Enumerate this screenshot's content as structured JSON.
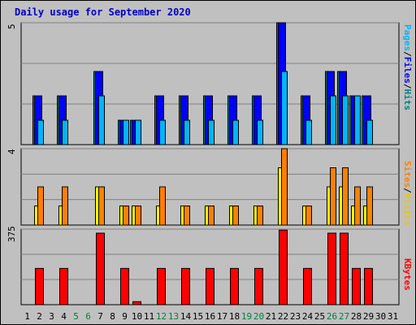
{
  "title": "Daily usage for September 2020",
  "panels": {
    "top": {
      "max_label": "5",
      "legend": [
        {
          "text": "Pages",
          "color": "#00b4ff"
        },
        {
          "text": "/",
          "color": "#000000"
        },
        {
          "text": "Files",
          "color": "#0000ff"
        },
        {
          "text": "/",
          "color": "#000000"
        },
        {
          "text": "Hits",
          "color": "#008080"
        }
      ]
    },
    "middle": {
      "max_label": "4",
      "legend": [
        {
          "text": "Sites",
          "color": "#ff8000"
        },
        {
          "text": "/",
          "color": "#000000"
        },
        {
          "text": "Visits",
          "color": "#e8c800"
        }
      ]
    },
    "bottom": {
      "max_label": "375",
      "legend": [
        {
          "text": "KBytes",
          "color": "#ff0000"
        }
      ]
    }
  },
  "colors": {
    "hits": "#008080",
    "files": "#0000ff",
    "pages": "#00b4ff",
    "visits": "#ffff00",
    "sites": "#ff8000",
    "kbytes": "#ff0000",
    "day_default": "#000000",
    "day_weekend": "#008040"
  },
  "chart_data": {
    "type": "bar",
    "title": "Daily usage for September 2020",
    "categories": [
      "1",
      "2",
      "3",
      "4",
      "5",
      "6",
      "7",
      "8",
      "9",
      "10",
      "11",
      "12",
      "13",
      "14",
      "15",
      "16",
      "17",
      "18",
      "19",
      "20",
      "21",
      "22",
      "23",
      "24",
      "25",
      "26",
      "27",
      "28",
      "29",
      "30",
      "31"
    ],
    "weekend_days": [
      "5",
      "6",
      "12",
      "13",
      "19",
      "20",
      "26",
      "27"
    ],
    "panels": [
      {
        "name": "Hits/Files/Pages",
        "ylim": [
          0,
          5
        ],
        "series": [
          {
            "name": "Hits",
            "values": [
              0,
              2,
              0,
              2,
              0,
              0,
              3,
              0,
              1,
              1,
              0,
              2,
              0,
              2,
              0,
              2,
              0,
              2,
              0,
              2,
              0,
              5,
              0,
              2,
              0,
              3,
              3,
              2,
              2,
              0,
              0
            ]
          },
          {
            "name": "Files",
            "values": [
              0,
              2,
              0,
              2,
              0,
              0,
              3,
              0,
              1,
              1,
              0,
              2,
              0,
              2,
              0,
              2,
              0,
              2,
              0,
              2,
              0,
              5,
              0,
              2,
              0,
              3,
              3,
              2,
              2,
              0,
              0
            ]
          },
          {
            "name": "Pages",
            "values": [
              0,
              1,
              0,
              1,
              0,
              0,
              2,
              0,
              1,
              1,
              0,
              1,
              0,
              1,
              0,
              1,
              0,
              1,
              0,
              1,
              0,
              3,
              0,
              1,
              0,
              2,
              2,
              2,
              1,
              0,
              0
            ]
          }
        ]
      },
      {
        "name": "Visits/Sites",
        "ylim": [
          0,
          4
        ],
        "series": [
          {
            "name": "Visits",
            "values": [
              0,
              1,
              0,
              1,
              0,
              0,
              2,
              0,
              1,
              1,
              0,
              1,
              0,
              1,
              0,
              1,
              0,
              1,
              0,
              1,
              0,
              3,
              0,
              1,
              0,
              2,
              2,
              1,
              1,
              0,
              0
            ]
          },
          {
            "name": "Sites",
            "values": [
              0,
              2,
              0,
              2,
              0,
              0,
              2,
              0,
              1,
              1,
              0,
              2,
              0,
              1,
              0,
              1,
              0,
              1,
              0,
              1,
              0,
              4,
              0,
              1,
              0,
              3,
              3,
              2,
              2,
              0,
              0
            ]
          }
        ]
      },
      {
        "name": "KBytes",
        "ylim": [
          0,
          375
        ],
        "series": [
          {
            "name": "KBytes",
            "values": [
              0,
              180,
              0,
              180,
              0,
              0,
              355,
              0,
              180,
              15,
              0,
              180,
              0,
              180,
              0,
              180,
              0,
              180,
              0,
              180,
              0,
              370,
              0,
              180,
              0,
              355,
              355,
              180,
              180,
              0,
              0
            ]
          }
        ]
      }
    ]
  }
}
